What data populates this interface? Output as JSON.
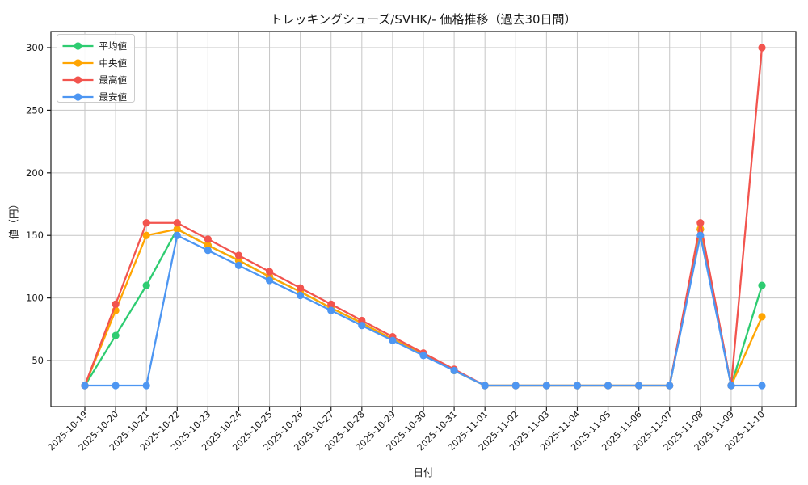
{
  "window": {
    "title": "トレッキングシューズ/SVHK/- 価格推移（過去30日間）"
  },
  "chart_data": {
    "type": "line",
    "title": "トレッキングシューズ/SVHK/- 価格推移（過去30日間）",
    "xlabel": "日付",
    "ylabel": "値（円）",
    "grid": true,
    "legend_position": "upper-left",
    "ylim": [
      13,
      313
    ],
    "yticks": [
      50,
      100,
      150,
      200,
      250,
      300
    ],
    "x": [
      "2025-10-19",
      "2025-10-20",
      "2025-10-21",
      "2025-10-22",
      "2025-10-23",
      "2025-10-24",
      "2025-10-25",
      "2025-10-26",
      "2025-10-27",
      "2025-10-28",
      "2025-10-29",
      "2025-10-30",
      "2025-10-31",
      "2025-11-01",
      "2025-11-02",
      "2025-11-03",
      "2025-11-04",
      "2025-11-05",
      "2025-11-06",
      "2025-11-07",
      "2025-11-08",
      "2025-11-09",
      "2025-11-10"
    ],
    "series": [
      {
        "name": "平均値",
        "id": "average",
        "color": "#2ecc71",
        "values": [
          30,
          70,
          110,
          155,
          142,
          130,
          117,
          105,
          92,
          80,
          67,
          55,
          42,
          30,
          30,
          30,
          30,
          30,
          30,
          30,
          155,
          30,
          110
        ]
      },
      {
        "name": "中央値",
        "id": "median",
        "color": "#ffa502",
        "values": [
          30,
          90,
          150,
          155,
          142,
          130,
          117,
          105,
          92,
          80,
          67,
          55,
          42,
          30,
          30,
          30,
          30,
          30,
          30,
          30,
          155,
          30,
          85
        ]
      },
      {
        "name": "最高値",
        "id": "highest",
        "color": "#f2544e",
        "values": [
          30,
          95,
          160,
          160,
          147,
          134,
          121,
          108,
          95,
          82,
          69,
          56,
          43,
          30,
          30,
          30,
          30,
          30,
          30,
          30,
          160,
          30,
          300
        ]
      },
      {
        "name": "最安値",
        "id": "lowest",
        "color": "#4d96f2",
        "values": [
          30,
          30,
          30,
          150,
          138,
          126,
          114,
          102,
          90,
          78,
          66,
          54,
          42,
          30,
          30,
          30,
          30,
          30,
          30,
          30,
          150,
          30,
          30
        ]
      }
    ],
    "colors": {
      "grid": "#c6c6c6",
      "spine": "#1a1a1a",
      "tick_label": "#1a1a1a",
      "legend_border": "#cccccc",
      "legend_bg": "#ffffff"
    }
  }
}
